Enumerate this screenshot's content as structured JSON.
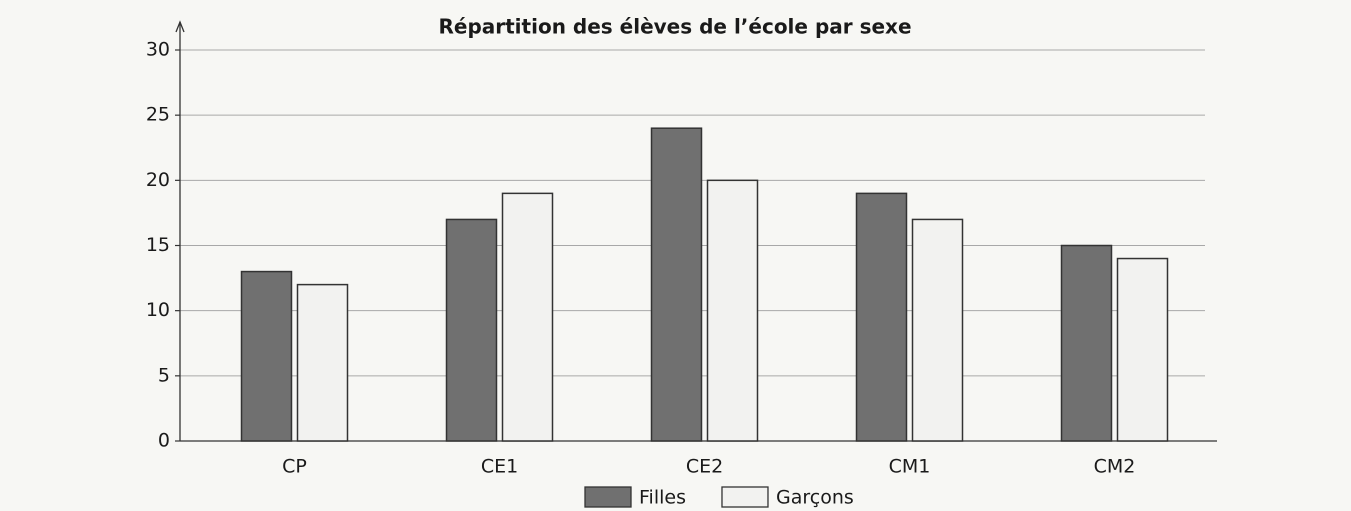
{
  "chart_data": {
    "type": "bar",
    "title": "Répartition des élèves de l’école par sexe",
    "categories": [
      "CP",
      "CE1",
      "CE2",
      "CM1",
      "CM2"
    ],
    "series": [
      {
        "name": "Filles",
        "color": "#707070",
        "values": [
          13,
          17,
          24,
          19,
          15
        ]
      },
      {
        "name": "Garçons",
        "color": "#f2f2f0",
        "values": [
          12,
          19,
          20,
          17,
          14
        ]
      }
    ],
    "ylim": [
      0,
      30
    ],
    "yticks": [
      0,
      5,
      10,
      15,
      20,
      25,
      30
    ],
    "grid": true,
    "legend": "bottom"
  }
}
